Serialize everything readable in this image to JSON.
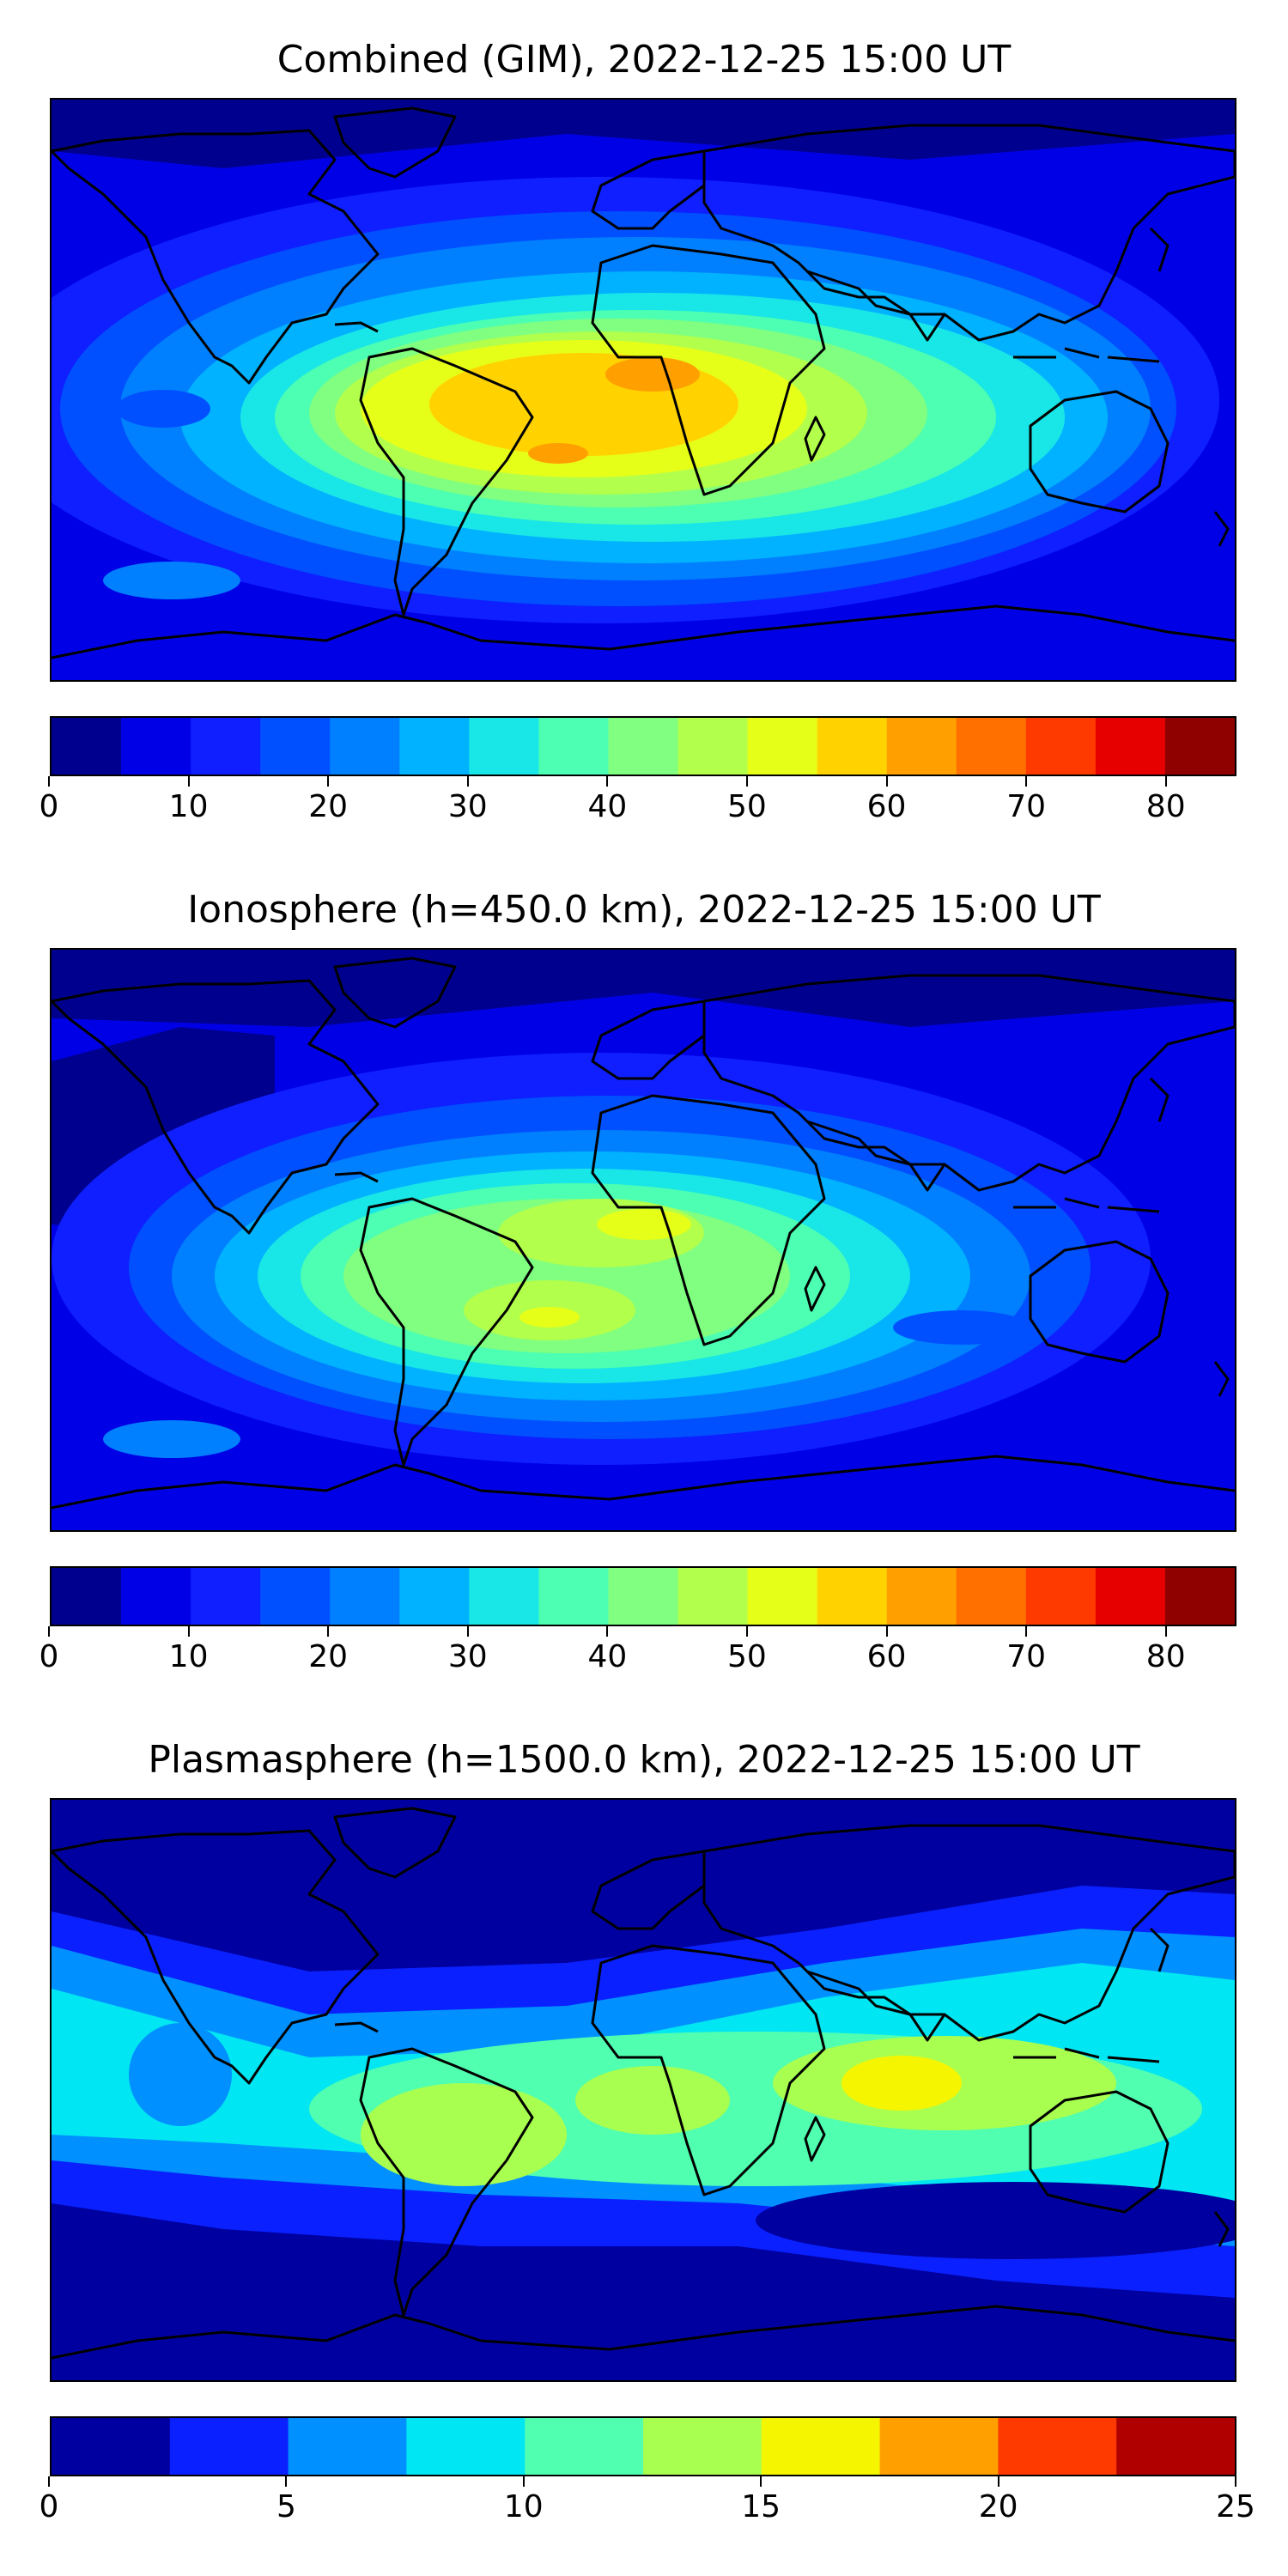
{
  "panels": [
    {
      "title": "Combined (GIM), 2022-12-25 15:00 UT",
      "colorbar": {
        "min": 0,
        "max": 85,
        "step": 5,
        "ticks": [
          "0",
          "10",
          "20",
          "30",
          "40",
          "50",
          "60",
          "70",
          "80"
        ],
        "tick_values": [
          0,
          10,
          20,
          30,
          40,
          50,
          60,
          70,
          80
        ],
        "colors": [
          "#00008f",
          "#0000e6",
          "#0f1fff",
          "#0050ff",
          "#0080ff",
          "#00b2ff",
          "#19e6e6",
          "#4cffb2",
          "#80ff80",
          "#b2ff4c",
          "#e6ff19",
          "#ffd200",
          "#ffa000",
          "#ff7000",
          "#ff3a00",
          "#e60000",
          "#8f0000"
        ]
      }
    },
    {
      "title": "Ionosphere  (h=450.0 km), 2022-12-25 15:00 UT",
      "colorbar": {
        "min": 0,
        "max": 85,
        "step": 5,
        "ticks": [
          "0",
          "10",
          "20",
          "30",
          "40",
          "50",
          "60",
          "70",
          "80"
        ],
        "tick_values": [
          0,
          10,
          20,
          30,
          40,
          50,
          60,
          70,
          80
        ],
        "colors": [
          "#00008f",
          "#0000e6",
          "#0f1fff",
          "#0050ff",
          "#0080ff",
          "#00b2ff",
          "#19e6e6",
          "#4cffb2",
          "#80ff80",
          "#b2ff4c",
          "#e6ff19",
          "#ffd200",
          "#ffa000",
          "#ff7000",
          "#ff3a00",
          "#e60000",
          "#8f0000"
        ]
      }
    },
    {
      "title": "Plasmasphere (h=1500.0 km), 2022-12-25 15:00 UT",
      "colorbar": {
        "min": 0,
        "max": 25,
        "step": 2.5,
        "ticks": [
          "0",
          "5",
          "10",
          "15",
          "20",
          "25"
        ],
        "tick_values": [
          0,
          5,
          10,
          15,
          20,
          25
        ],
        "colors": [
          "#0000a0",
          "#0a20ff",
          "#0090ff",
          "#00e6f2",
          "#50ffb0",
          "#a8ff50",
          "#f5f500",
          "#ffa000",
          "#ff3a00",
          "#b00000"
        ]
      }
    }
  ]
}
